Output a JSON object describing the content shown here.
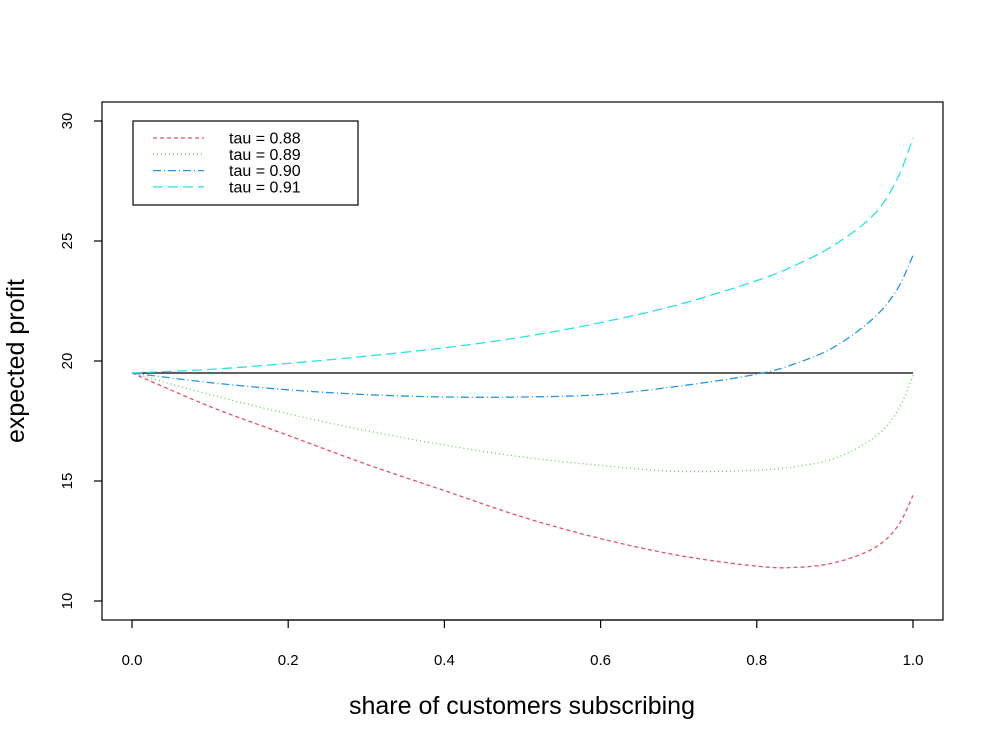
{
  "chart_data": {
    "type": "line",
    "title": "",
    "xlabel": "share of customers subscribing",
    "ylabel": "expected profit",
    "xlim": [
      0.0,
      1.0
    ],
    "ylim": [
      10,
      30
    ],
    "xticks": [
      "0.0",
      "0.2",
      "0.4",
      "0.6",
      "0.8",
      "1.0"
    ],
    "yticks": [
      "10",
      "15",
      "20",
      "25",
      "30"
    ],
    "grid": false,
    "legend_position": "top-left",
    "x": [
      0.0,
      0.1,
      0.2,
      0.3,
      0.4,
      0.5,
      0.6,
      0.7,
      0.8,
      0.85,
      0.9,
      0.95,
      0.98,
      1.0
    ],
    "baseline": {
      "y": 19.5,
      "color": "#000000"
    },
    "series": [
      {
        "name": "tau = 0.88",
        "color": "#DF536B",
        "dash": "4,3",
        "values": [
          19.5,
          18.1,
          16.9,
          15.7,
          14.6,
          13.5,
          12.6,
          11.9,
          11.45,
          11.4,
          11.6,
          12.2,
          13.1,
          14.4
        ]
      },
      {
        "name": "tau = 0.89",
        "color": "#61D04F",
        "dash": "1,3",
        "values": [
          19.5,
          18.6,
          17.8,
          17.1,
          16.5,
          16.0,
          15.65,
          15.4,
          15.45,
          15.6,
          15.95,
          16.8,
          17.9,
          19.4
        ]
      },
      {
        "name": "tau = 0.90",
        "color": "#2297E6",
        "dash": "8,3,1,3",
        "values": [
          19.5,
          19.1,
          18.8,
          18.6,
          18.5,
          18.5,
          18.6,
          18.95,
          19.45,
          19.9,
          20.6,
          21.8,
          23.0,
          24.4
        ]
      },
      {
        "name": "tau = 0.91",
        "color": "#28E2E5",
        "dash": "10,5",
        "values": [
          19.5,
          19.65,
          19.9,
          20.2,
          20.55,
          21.0,
          21.6,
          22.35,
          23.35,
          24.0,
          24.85,
          26.1,
          27.6,
          29.3
        ]
      }
    ]
  }
}
